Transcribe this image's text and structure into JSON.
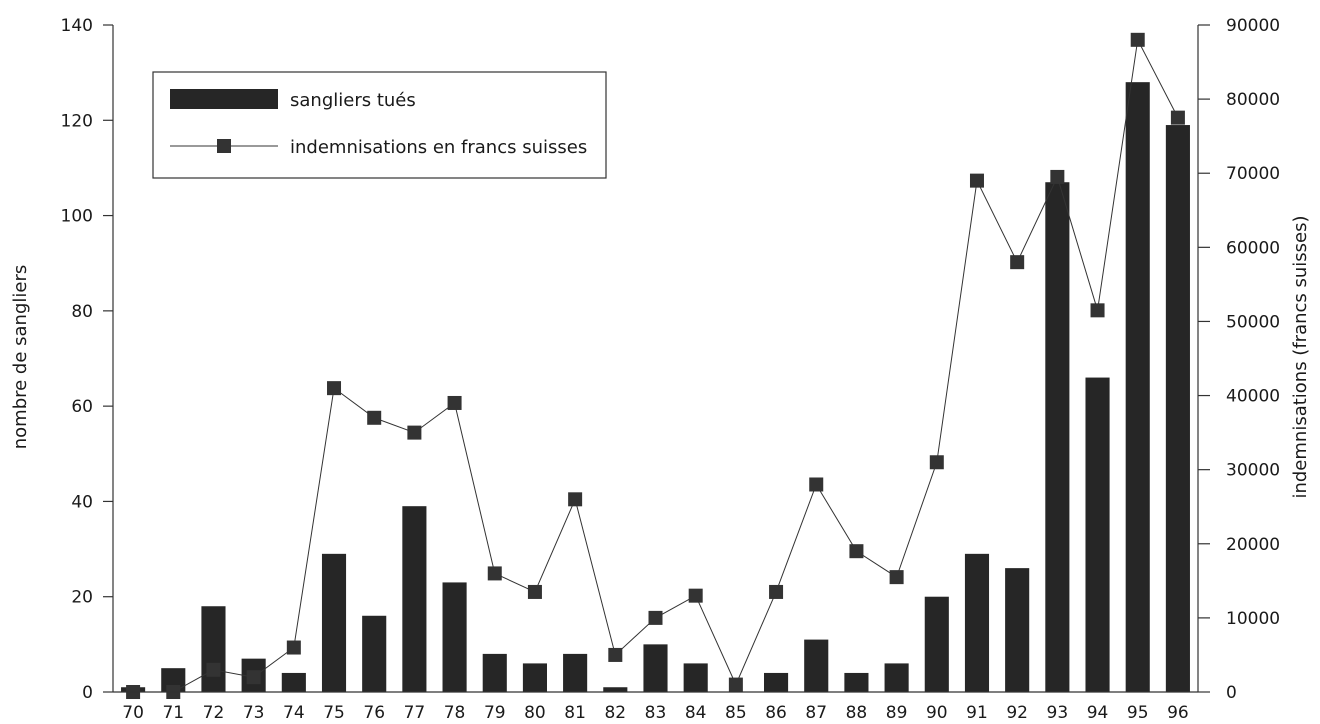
{
  "chart_data": {
    "type": "bar",
    "categories": [
      "70",
      "71",
      "72",
      "73",
      "74",
      "75",
      "76",
      "77",
      "78",
      "79",
      "80",
      "81",
      "82",
      "83",
      "84",
      "85",
      "86",
      "87",
      "88",
      "89",
      "90",
      "91",
      "92",
      "93",
      "94",
      "95",
      "96"
    ],
    "series": [
      {
        "name": "sangliers tués",
        "type": "bar",
        "axis": "left",
        "color": "#262626",
        "values": [
          1,
          5,
          18,
          7,
          4,
          29,
          16,
          39,
          23,
          8,
          6,
          8,
          1,
          10,
          6,
          0,
          4,
          11,
          4,
          6,
          20,
          29,
          26,
          107,
          66,
          128,
          119
        ]
      },
      {
        "name": "indemnisations en francs suisses",
        "type": "line",
        "axis": "right",
        "color": "#333333",
        "values": [
          0,
          0,
          3000,
          2000,
          6000,
          41000,
          37000,
          35000,
          39000,
          16000,
          13500,
          26000,
          5000,
          10000,
          13000,
          1000,
          13500,
          28000,
          19000,
          15500,
          31000,
          69000,
          58000,
          69500,
          51500,
          88000,
          77500
        ]
      }
    ],
    "ylabel": "nombre de sangliers",
    "ylabel_right": "indemnisations (francs suisses)",
    "ylim": [
      0,
      140
    ],
    "ylim_right": [
      0,
      90000
    ],
    "yticks": [
      "0",
      "20",
      "40",
      "60",
      "80",
      "100",
      "120",
      "140"
    ],
    "yticks_right": [
      "0",
      "10000",
      "20000",
      "30000",
      "40000",
      "50000",
      "60000",
      "70000",
      "80000",
      "90000"
    ],
    "legend_position": "top-left",
    "grid": false
  }
}
